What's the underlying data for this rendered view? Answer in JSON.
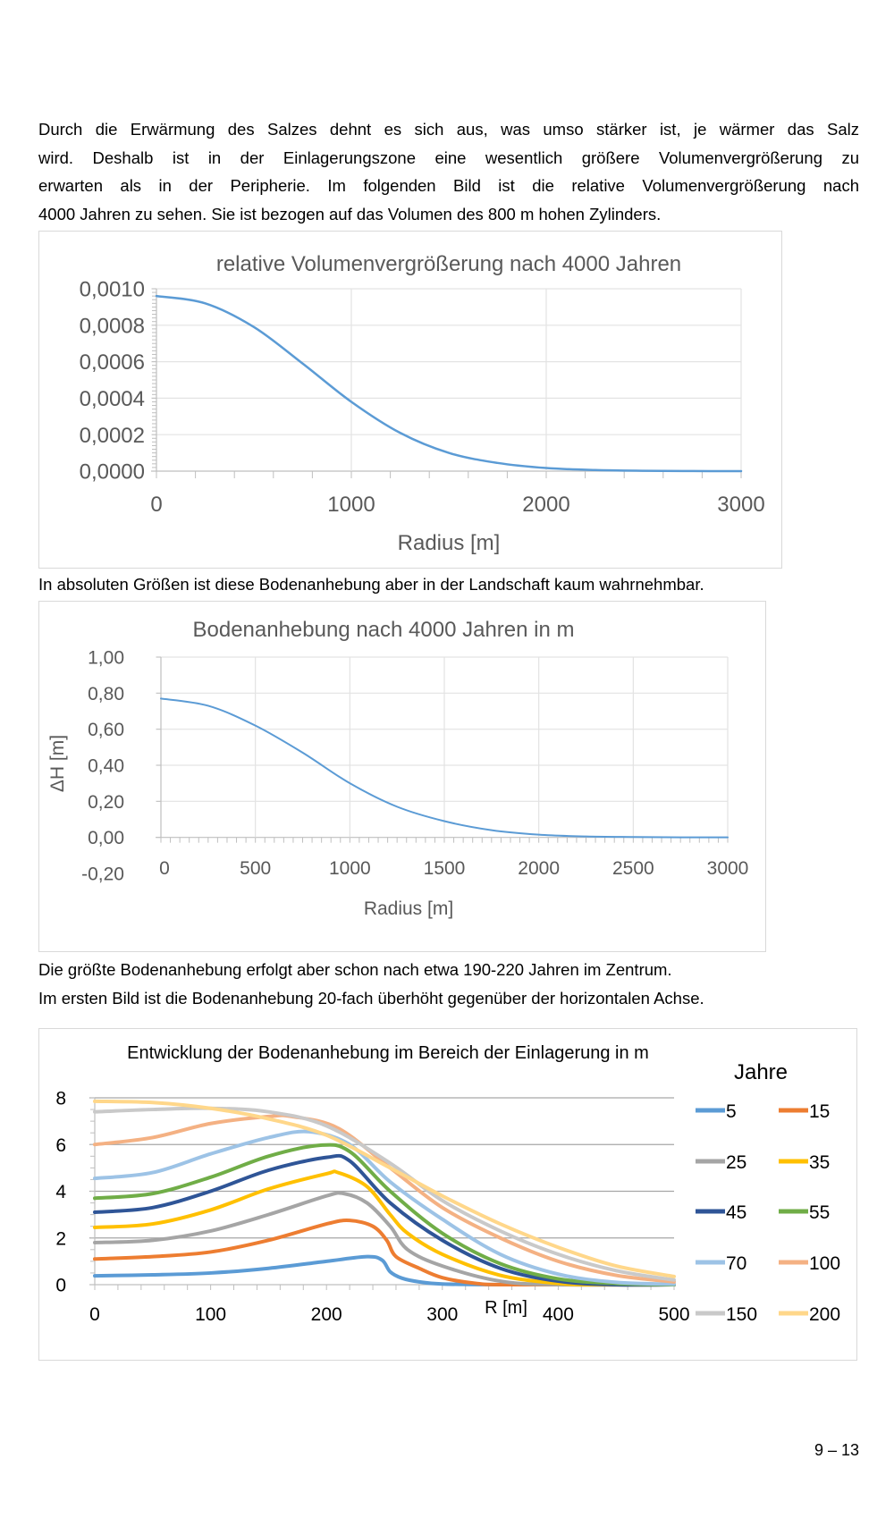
{
  "intro_lines": [
    "Durch die Erwärmung des Salzes dehnt es sich aus, was umso stärker ist, je wärmer das Salz",
    "wird. Deshalb ist in der Einlagerungszone eine wesentlich größere Volumenvergrößerung zu",
    "erwarten als in der Peripherie. Im folgenden Bild ist die relative Volumenvergrößerung nach",
    "4000 Jahren zu sehen. Sie ist bezogen auf das Volumen des 800 m hohen Zylinders."
  ],
  "between_text": "In absoluten Größen ist diese Bodenanhebung aber in der Landschaft kaum wahrnehmbar.",
  "after_lines": [
    "Die größte Bodenanhebung erfolgt aber schon nach etwa 190-220 Jahren im Zentrum.",
    "Im ersten Bild ist die Bodenanhebung 20-fach überhöht gegenüber der horizontalen Achse."
  ],
  "page_number": "9 – 13",
  "chart_data": [
    {
      "type": "line",
      "title": "relative Volumenvergrößerung  nach 4000 Jahren",
      "xlabel": "Radius [m]",
      "ylabel": "",
      "xlim": [
        0,
        3000
      ],
      "ylim": [
        0,
        0.001
      ],
      "x_ticks": [
        "0",
        "1000",
        "2000",
        "3000"
      ],
      "y_ticks": [
        "0,0000",
        "0,0002",
        "0,0004",
        "0,0006",
        "0,0008",
        "0,0010"
      ],
      "grid": true,
      "color": "#5B9BD5",
      "series": [
        {
          "points": [
            [
              0,
              0.00096
            ],
            [
              250,
              0.00092
            ],
            [
              500,
              0.00079
            ],
            [
              750,
              0.00059
            ],
            [
              1000,
              0.00038
            ],
            [
              1250,
              0.00021
            ],
            [
              1500,
              0.0001
            ],
            [
              1750,
              4.5e-05
            ],
            [
              2000,
              1.7e-05
            ],
            [
              2250,
              6e-06
            ],
            [
              2500,
              2e-06
            ],
            [
              2750,
              5e-07
            ],
            [
              3000,
              0
            ]
          ]
        }
      ]
    },
    {
      "type": "line",
      "title": "Bodenanhebung  nach 4000 Jahren in m",
      "xlabel": "Radius [m]",
      "ylabel": "ΔH [m]",
      "xlim": [
        0,
        3000
      ],
      "ylim": [
        -0.2,
        1.0
      ],
      "x_ticks": [
        "0",
        "500",
        "1000",
        "1500",
        "2000",
        "2500",
        "3000"
      ],
      "y_ticks": [
        "-0,20",
        "0,00",
        "0,20",
        "0,40",
        "0,60",
        "0,80",
        "1,00"
      ],
      "grid": true,
      "color": "#5B9BD5",
      "series": [
        {
          "points": [
            [
              0,
              0.77
            ],
            [
              250,
              0.73
            ],
            [
              500,
              0.62
            ],
            [
              750,
              0.47
            ],
            [
              1000,
              0.3
            ],
            [
              1250,
              0.17
            ],
            [
              1500,
              0.09
            ],
            [
              1750,
              0.04
            ],
            [
              2000,
              0.015
            ],
            [
              2250,
              0.005
            ],
            [
              2500,
              0.002
            ],
            [
              2750,
              0.0005
            ],
            [
              3000,
              0
            ]
          ]
        }
      ]
    },
    {
      "type": "line",
      "title": "Entwicklung der Bodenanhebung  im Bereich der Einlagerung in m",
      "xlabel": "R [m]",
      "ylabel": "",
      "xlim": [
        0,
        500
      ],
      "ylim": [
        0,
        8
      ],
      "x_ticks": [
        "0",
        "100",
        "200",
        "300",
        "400",
        "500"
      ],
      "y_ticks": [
        "0",
        "2",
        "4",
        "6",
        "8"
      ],
      "grid": true,
      "legend_title": "Jahre",
      "legend_position": "right",
      "series": [
        {
          "name": "5",
          "color": "#5B9BD5",
          "points": [
            [
              0,
              0.38
            ],
            [
              50,
              0.42
            ],
            [
              100,
              0.5
            ],
            [
              150,
              0.7
            ],
            [
              200,
              1.0
            ],
            [
              235,
              1.2
            ],
            [
              248,
              1.05
            ],
            [
              255,
              0.55
            ],
            [
              265,
              0.28
            ],
            [
              280,
              0.12
            ],
            [
              300,
              0.03
            ],
            [
              350,
              0
            ],
            [
              500,
              0
            ]
          ]
        },
        {
          "name": "15",
          "color": "#ED7D31",
          "points": [
            [
              0,
              1.1
            ],
            [
              50,
              1.2
            ],
            [
              100,
              1.4
            ],
            [
              150,
              1.9
            ],
            [
              200,
              2.6
            ],
            [
              220,
              2.75
            ],
            [
              240,
              2.5
            ],
            [
              252,
              1.9
            ],
            [
              260,
              1.2
            ],
            [
              280,
              0.7
            ],
            [
              300,
              0.3
            ],
            [
              330,
              0.05
            ],
            [
              360,
              0
            ],
            [
              500,
              0
            ]
          ]
        },
        {
          "name": "25",
          "color": "#A5A5A5",
          "points": [
            [
              0,
              1.8
            ],
            [
              50,
              1.9
            ],
            [
              100,
              2.3
            ],
            [
              150,
              3.0
            ],
            [
              200,
              3.8
            ],
            [
              215,
              3.9
            ],
            [
              235,
              3.5
            ],
            [
              255,
              2.5
            ],
            [
              270,
              1.5
            ],
            [
              300,
              0.8
            ],
            [
              350,
              0.15
            ],
            [
              400,
              0
            ],
            [
              500,
              0
            ]
          ]
        },
        {
          "name": "35",
          "color": "#FFC000",
          "points": [
            [
              0,
              2.45
            ],
            [
              50,
              2.6
            ],
            [
              100,
              3.2
            ],
            [
              150,
              4.1
            ],
            [
              200,
              4.75
            ],
            [
              210,
              4.8
            ],
            [
              235,
              4.2
            ],
            [
              255,
              3.0
            ],
            [
              270,
              2.2
            ],
            [
              300,
              1.3
            ],
            [
              350,
              0.4
            ],
            [
              400,
              0.05
            ],
            [
              430,
              0
            ],
            [
              500,
              0
            ]
          ]
        },
        {
          "name": "45",
          "color": "#2F5597",
          "points": [
            [
              0,
              3.1
            ],
            [
              50,
              3.3
            ],
            [
              100,
              4.0
            ],
            [
              150,
              4.9
            ],
            [
              200,
              5.45
            ],
            [
              220,
              5.3
            ],
            [
              255,
              3.5
            ],
            [
              300,
              1.9
            ],
            [
              350,
              0.7
            ],
            [
              400,
              0.15
            ],
            [
              450,
              0
            ],
            [
              500,
              0
            ]
          ]
        },
        {
          "name": "55",
          "color": "#70AD47",
          "points": [
            [
              0,
              3.7
            ],
            [
              50,
              3.9
            ],
            [
              100,
              4.6
            ],
            [
              150,
              5.5
            ],
            [
              195,
              5.97
            ],
            [
              220,
              5.7
            ],
            [
              255,
              4.0
            ],
            [
              300,
              2.2
            ],
            [
              350,
              0.9
            ],
            [
              400,
              0.25
            ],
            [
              450,
              0.05
            ],
            [
              500,
              0
            ]
          ]
        },
        {
          "name": "70",
          "color": "#9DC3E6",
          "points": [
            [
              0,
              4.55
            ],
            [
              50,
              4.8
            ],
            [
              100,
              5.6
            ],
            [
              150,
              6.3
            ],
            [
              185,
              6.55
            ],
            [
              220,
              6.0
            ],
            [
              255,
              4.4
            ],
            [
              300,
              2.8
            ],
            [
              350,
              1.3
            ],
            [
              400,
              0.45
            ],
            [
              450,
              0.1
            ],
            [
              500,
              0.02
            ]
          ]
        },
        {
          "name": "100",
          "color": "#F4B183",
          "points": [
            [
              0,
              6.0
            ],
            [
              50,
              6.3
            ],
            [
              100,
              6.9
            ],
            [
              150,
              7.2
            ],
            [
              170,
              7.2
            ],
            [
              210,
              6.7
            ],
            [
              255,
              5.0
            ],
            [
              300,
              3.3
            ],
            [
              350,
              2.0
            ],
            [
              400,
              1.0
            ],
            [
              450,
              0.4
            ],
            [
              500,
              0.12
            ]
          ]
        },
        {
          "name": "150",
          "color": "#C9C9C9",
          "points": [
            [
              0,
              7.4
            ],
            [
              50,
              7.5
            ],
            [
              100,
              7.55
            ],
            [
              150,
              7.4
            ],
            [
              200,
              6.8
            ],
            [
              255,
              5.2
            ],
            [
              300,
              3.6
            ],
            [
              350,
              2.3
            ],
            [
              400,
              1.3
            ],
            [
              450,
              0.6
            ],
            [
              500,
              0.2
            ]
          ]
        },
        {
          "name": "200",
          "color": "#FFD78A",
          "points": [
            [
              0,
              7.85
            ],
            [
              50,
              7.8
            ],
            [
              100,
              7.55
            ],
            [
              150,
              7.1
            ],
            [
              200,
              6.4
            ],
            [
              255,
              5.0
            ],
            [
              300,
              3.8
            ],
            [
              350,
              2.6
            ],
            [
              400,
              1.6
            ],
            [
              450,
              0.8
            ],
            [
              500,
              0.35
            ]
          ]
        }
      ]
    }
  ]
}
